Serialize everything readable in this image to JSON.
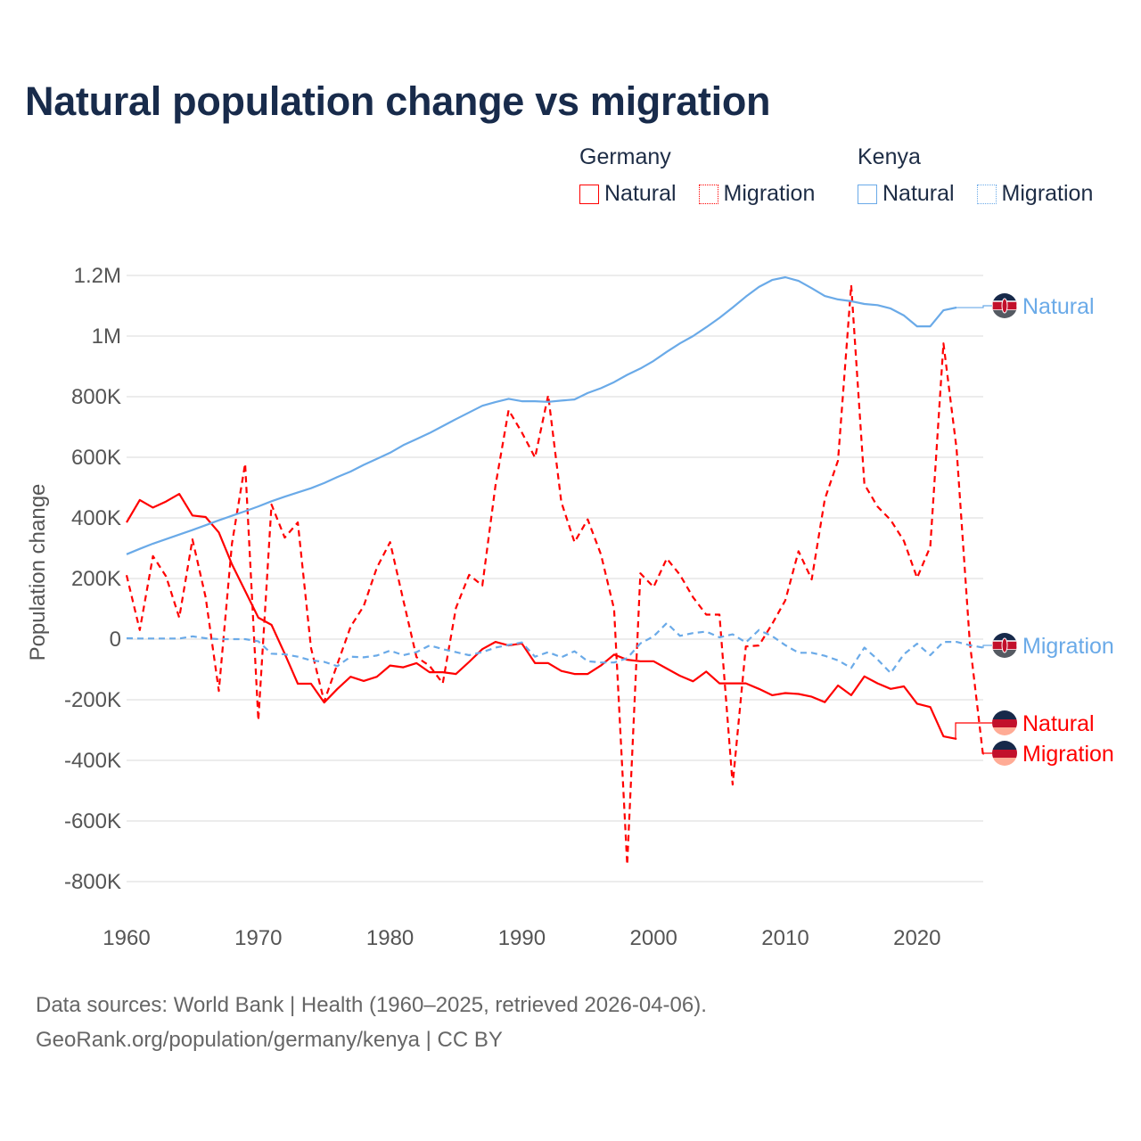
{
  "chart_data": {
    "type": "line",
    "title": "Natural population change vs migration",
    "xlabel": "",
    "ylabel": "Population change",
    "xlim": [
      1960,
      2025
    ],
    "ylim": [
      -900000,
      1250000
    ],
    "x_ticks": [
      1960,
      1970,
      1980,
      1990,
      2000,
      2010,
      2020
    ],
    "y_ticks": [
      {
        "value": 1200000,
        "label": "1.2M"
      },
      {
        "value": 1000000,
        "label": "1M"
      },
      {
        "value": 800000,
        "label": "800K"
      },
      {
        "value": 600000,
        "label": "600K"
      },
      {
        "value": 400000,
        "label": "400K"
      },
      {
        "value": 200000,
        "label": "200K"
      },
      {
        "value": 0,
        "label": "0"
      },
      {
        "value": -200000,
        "label": "-200K"
      },
      {
        "value": -400000,
        "label": "-400K"
      },
      {
        "value": -600000,
        "label": "-600K"
      },
      {
        "value": -800000,
        "label": "-800K"
      }
    ],
    "grid": true,
    "legend": {
      "placement": "top-right",
      "groups": [
        {
          "name": "Germany",
          "items": [
            "Natural",
            "Migration"
          ]
        },
        {
          "name": "Kenya",
          "items": [
            "Natural",
            "Migration"
          ]
        }
      ]
    },
    "series": [
      {
        "country": "Germany",
        "name": "Natural",
        "color": "#ff0000",
        "dash": false,
        "start": 1960,
        "values_k": [
          385,
          459,
          434,
          454,
          479,
          408,
          403,
          352,
          247,
          159,
          71,
          47,
          -48,
          -147,
          -147,
          -209,
          -164,
          -124,
          -138,
          -124,
          -87,
          -93,
          -79,
          -109,
          -109,
          -115,
          -75,
          -33,
          -9,
          -21,
          -14,
          -79,
          -79,
          -105,
          -115,
          -115,
          -87,
          -51,
          -68,
          -73,
          -73,
          -97,
          -121,
          -139,
          -107,
          -146,
          -146,
          -146,
          -164,
          -185,
          -178,
          -181,
          -190,
          -208,
          -153,
          -185,
          -123,
          -146,
          -164,
          -156,
          -213,
          -224,
          -321,
          -329
        ]
      },
      {
        "country": "Germany",
        "name": "Migration",
        "color": "#ff0000",
        "dash": true,
        "start": 1960,
        "values_k": [
          211,
          30,
          274,
          207,
          71,
          329,
          138,
          -171,
          315,
          579,
          -268,
          444,
          335,
          385,
          -29,
          -206,
          -82,
          41,
          109,
          236,
          320,
          129,
          -59,
          -88,
          -146,
          103,
          212,
          177,
          506,
          756,
          682,
          599,
          805,
          452,
          320,
          395,
          280,
          99,
          -744,
          217,
          172,
          266,
          212,
          138,
          81,
          81,
          -480,
          -24,
          -21,
          50,
          128,
          290,
          197,
          462,
          589,
          1168,
          511,
          437,
          393,
          324,
          202,
          305,
          976,
          628,
          -9,
          -380
        ]
      },
      {
        "country": "Kenya",
        "name": "Natural",
        "color": "#6aaae8",
        "dash": false,
        "start": 1960,
        "values_k": [
          280,
          298,
          315,
          330,
          345,
          360,
          376,
          392,
          407,
          422,
          438,
          455,
          470,
          484,
          498,
          515,
          535,
          553,
          575,
          595,
          615,
          640,
          660,
          680,
          703,
          726,
          748,
          770,
          782,
          793,
          785,
          785,
          783,
          787,
          791,
          812,
          828,
          848,
          872,
          893,
          918,
          948,
          976,
          1000,
          1029,
          1060,
          1094,
          1130,
          1162,
          1185,
          1194,
          1182,
          1158,
          1132,
          1121,
          1115,
          1106,
          1102,
          1091,
          1068,
          1032,
          1032,
          1085,
          1094
        ]
      },
      {
        "country": "Kenya",
        "name": "Migration",
        "color": "#6aaae8",
        "dash": true,
        "start": 1960,
        "values_k": [
          3,
          2,
          2,
          2,
          2,
          9,
          3,
          0,
          0,
          0,
          -7,
          -48,
          -50,
          -58,
          -70,
          -75,
          -89,
          -58,
          -60,
          -54,
          -38,
          -53,
          -43,
          -21,
          -33,
          -43,
          -53,
          -43,
          -28,
          -19,
          -11,
          -58,
          -43,
          -60,
          -40,
          -73,
          -77,
          -77,
          -63,
          -14,
          9,
          53,
          11,
          20,
          25,
          6,
          16,
          -11,
          30,
          10,
          -20,
          -45,
          -45,
          -55,
          -70,
          -95,
          -28,
          -67,
          -112,
          -50,
          -15,
          -53,
          -9,
          -9,
          -20,
          -28
        ]
      }
    ]
  },
  "footer": {
    "line1": "Data sources: World Bank | Health (1960–2025, retrieved 2026-04-06).",
    "line2": "GeoRank.org/population/germany/kenya | CC BY"
  }
}
